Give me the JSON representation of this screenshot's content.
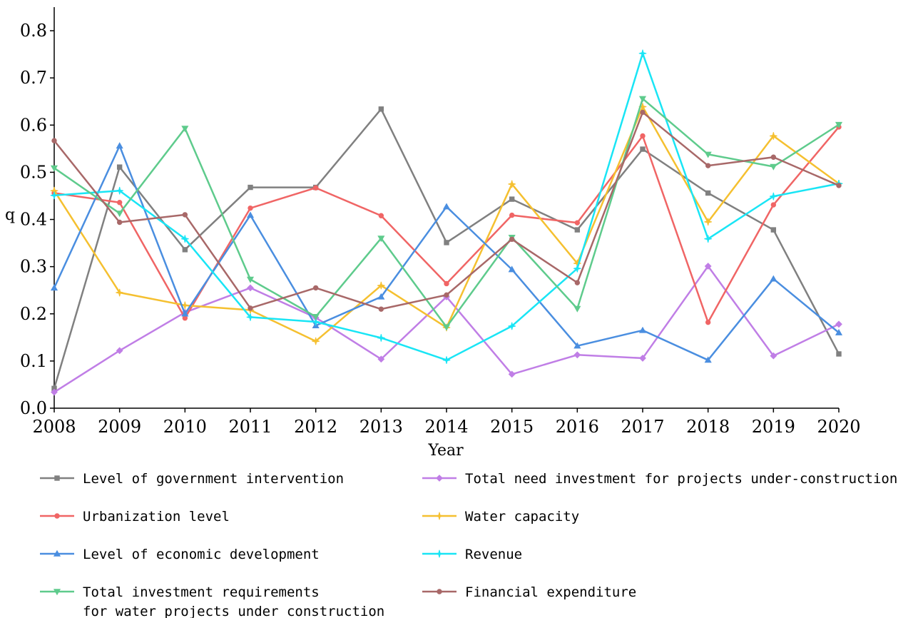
{
  "chart_data": {
    "type": "line",
    "xlabel": "Year",
    "ylabel": "q",
    "ylim": [
      0.0,
      0.85
    ],
    "yticks": [
      "0.0",
      "0.1",
      "0.2",
      "0.3",
      "0.4",
      "0.5",
      "0.6",
      "0.7",
      "0.8"
    ],
    "x": [
      "2008",
      "2009",
      "2010",
      "2011",
      "2012",
      "2013",
      "2014",
      "2015",
      "2016",
      "2017",
      "2018",
      "2019",
      "2020"
    ],
    "grid": false,
    "legend_position": "bottom",
    "series": [
      {
        "name": "Level of government intervention",
        "color": "#808080",
        "marker": "square",
        "values": [
          0.042,
          0.511,
          0.336,
          0.468,
          0.468,
          0.634,
          0.351,
          0.443,
          0.378,
          0.549,
          0.456,
          0.378,
          0.115
        ]
      },
      {
        "name": "Total need investment for projects under-construction",
        "color": "#c07ee6",
        "marker": "diamond",
        "values": [
          0.034,
          0.122,
          0.203,
          0.255,
          0.192,
          0.104,
          0.236,
          0.072,
          0.113,
          0.106,
          0.301,
          0.111,
          0.178
        ]
      },
      {
        "name": "Urbanization level",
        "color": "#f06565",
        "marker": "circle",
        "values": [
          0.456,
          0.436,
          0.191,
          0.424,
          0.467,
          0.408,
          0.264,
          0.409,
          0.393,
          0.577,
          0.182,
          0.431,
          0.596
        ]
      },
      {
        "name": "Water capacity",
        "color": "#f5c030",
        "marker": "star",
        "values": [
          0.461,
          0.245,
          0.218,
          0.208,
          0.142,
          0.26,
          0.171,
          0.475,
          0.307,
          0.639,
          0.395,
          0.577,
          0.476
        ]
      },
      {
        "name": "Level of economic development",
        "color": "#4a8ee0",
        "marker": "triangle-up",
        "values": [
          0.255,
          0.556,
          0.2,
          0.409,
          0.175,
          0.236,
          0.427,
          0.294,
          0.132,
          0.165,
          0.102,
          0.274,
          0.16
        ]
      },
      {
        "name": "Revenue",
        "color": "#19e5f5",
        "marker": "star",
        "values": [
          0.451,
          0.461,
          0.359,
          0.193,
          0.183,
          0.149,
          0.102,
          0.174,
          0.296,
          0.752,
          0.359,
          0.449,
          0.476
        ]
      },
      {
        "name": "Total investment requirements\nfor water projects under construction",
        "color": "#5ecb8c",
        "marker": "triangle-down",
        "values": [
          0.509,
          0.413,
          0.593,
          0.273,
          0.194,
          0.36,
          0.172,
          0.362,
          0.211,
          0.656,
          0.538,
          0.512,
          0.601
        ]
      },
      {
        "name": "Financial expenditure",
        "color": "#a86868",
        "marker": "circle",
        "values": [
          0.567,
          0.394,
          0.41,
          0.212,
          0.255,
          0.21,
          0.24,
          0.358,
          0.266,
          0.627,
          0.514,
          0.532,
          0.472
        ]
      }
    ]
  }
}
